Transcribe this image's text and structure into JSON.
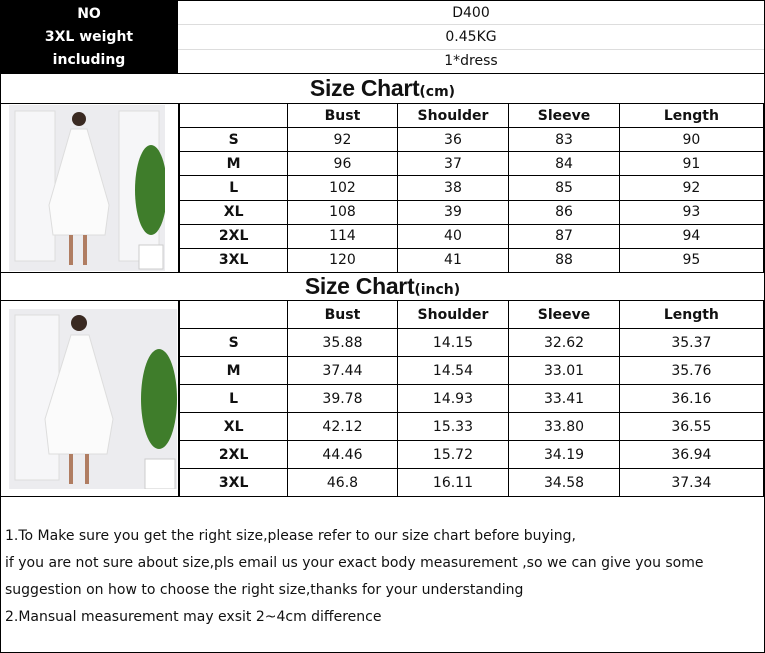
{
  "info": {
    "labels": [
      "NO",
      "3XL weight",
      "including"
    ],
    "values": [
      "D400",
      "0.45KG",
      "1*dress"
    ]
  },
  "cm": {
    "title": "Size Chart",
    "unit": "(cm)",
    "headers": [
      "",
      "Bust",
      "Shoulder",
      "Sleeve",
      "Length"
    ],
    "rows": [
      [
        "S",
        "92",
        "36",
        "83",
        "90"
      ],
      [
        "M",
        "96",
        "37",
        "84",
        "91"
      ],
      [
        "L",
        "102",
        "38",
        "85",
        "92"
      ],
      [
        "XL",
        "108",
        "39",
        "86",
        "93"
      ],
      [
        "2XL",
        "114",
        "40",
        "87",
        "94"
      ],
      [
        "3XL",
        "120",
        "41",
        "88",
        "95"
      ]
    ]
  },
  "inch": {
    "title": "Size Chart",
    "unit": "(inch)",
    "headers": [
      "",
      "Bust",
      "Shoulder",
      "Sleeve",
      "Length"
    ],
    "rows": [
      [
        "S",
        "35.88",
        "14.15",
        "32.62",
        "35.37"
      ],
      [
        "M",
        "37.44",
        "14.54",
        "33.01",
        "35.76"
      ],
      [
        "L",
        "39.78",
        "14.93",
        "33.41",
        "36.16"
      ],
      [
        "XL",
        "42.12",
        "15.33",
        "33.80",
        "36.55"
      ],
      [
        "2XL",
        "44.46",
        "15.72",
        "34.19",
        "36.94"
      ],
      [
        "3XL",
        "46.8",
        "16.11",
        "34.58",
        "37.34"
      ]
    ]
  },
  "notes": [
    "1.To Make sure you get the right size,please refer to our size chart before buying,",
    "if you are not sure about size,pls email us your exact body measurement ,so we can give you some",
    "suggestion on how to choose the right size,thanks for your understanding",
    "2.Mansual measurement may exsit 2~4cm difference"
  ]
}
